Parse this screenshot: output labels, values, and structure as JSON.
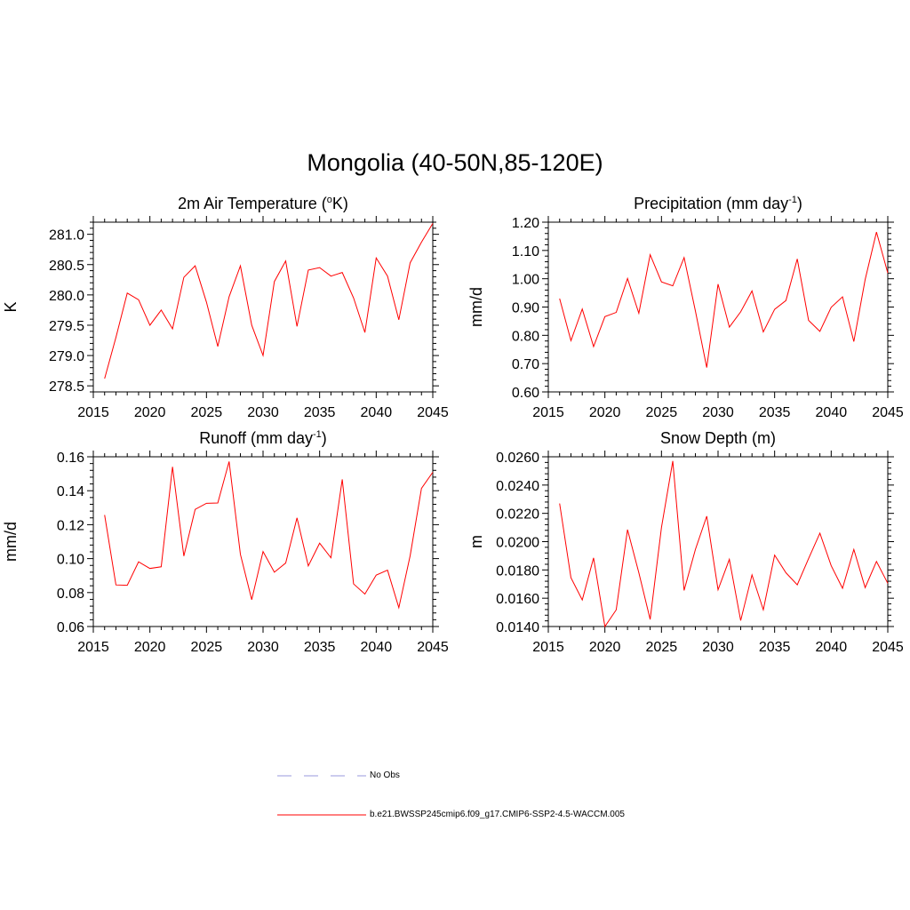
{
  "title": "Mongolia (40-50N,85-120E)",
  "colors": {
    "series": "#ff0000",
    "no_obs": "#9999dd",
    "axis": "#000000"
  },
  "legend": [
    {
      "label": "No Obs",
      "style": "dashed"
    },
    {
      "label": "b.e21.BWSSP245cmip6.f09_g17.CMIP6-SSP2-4.5-WACCM.005",
      "style": "solid"
    }
  ],
  "chart_data": [
    {
      "type": "line",
      "title_main": "2m Air Temperature (",
      "title_sup": "o",
      "title_end": "K)",
      "ylabel": "K",
      "xlim": [
        2015,
        2045
      ],
      "ylim": [
        278.4,
        281.2
      ],
      "xticks": [
        "2015",
        "2020",
        "2025",
        "2030",
        "2035",
        "2040",
        "2045"
      ],
      "yticks": [
        "278.5",
        "279.0",
        "279.5",
        "280.0",
        "280.5",
        "281.0"
      ],
      "x": [
        2016,
        2017,
        2018,
        2019,
        2020,
        2021,
        2022,
        2023,
        2024,
        2025,
        2026,
        2027,
        2028,
        2029,
        2030,
        2031,
        2032,
        2033,
        2034,
        2035,
        2036,
        2037,
        2038,
        2039,
        2040,
        2041,
        2042,
        2043,
        2044,
        2045
      ],
      "values": [
        278.62,
        279.3,
        280.03,
        279.92,
        279.5,
        279.75,
        279.44,
        280.29,
        280.48,
        279.88,
        279.15,
        279.97,
        280.48,
        279.5,
        279.0,
        280.22,
        280.56,
        279.48,
        280.41,
        280.45,
        280.31,
        280.37,
        279.95,
        279.38,
        280.61,
        280.31,
        279.59,
        280.53,
        280.87,
        281.18
      ]
    },
    {
      "type": "line",
      "title_main": "Precipitation (mm day",
      "title_sup": "-1",
      "title_end": ")",
      "ylabel": "mm/d",
      "xlim": [
        2015,
        2045
      ],
      "ylim": [
        0.6,
        1.2
      ],
      "xticks": [
        "2015",
        "2020",
        "2025",
        "2030",
        "2035",
        "2040",
        "2045"
      ],
      "yticks": [
        "0.60",
        "0.70",
        "0.80",
        "0.90",
        "1.00",
        "1.10",
        "1.20"
      ],
      "x": [
        2016,
        2017,
        2018,
        2019,
        2020,
        2021,
        2022,
        2023,
        2024,
        2025,
        2026,
        2027,
        2028,
        2029,
        2030,
        2031,
        2032,
        2033,
        2034,
        2035,
        2036,
        2037,
        2038,
        2039,
        2040,
        2041,
        2042,
        2043,
        2044,
        2045
      ],
      "values": [
        0.93,
        0.781,
        0.893,
        0.76,
        0.866,
        0.881,
        1.001,
        0.878,
        1.085,
        0.989,
        0.975,
        1.075,
        0.886,
        0.686,
        0.981,
        0.829,
        0.883,
        0.957,
        0.812,
        0.892,
        0.923,
        1.07,
        0.853,
        0.814,
        0.899,
        0.936,
        0.778,
        0.997,
        1.165,
        1.02
      ]
    },
    {
      "type": "line",
      "title_main": "Runoff (mm day",
      "title_sup": "-1",
      "title_end": ")",
      "ylabel": "mm/d",
      "xlim": [
        2015,
        2045
      ],
      "ylim": [
        0.06,
        0.16
      ],
      "xticks": [
        "2015",
        "2020",
        "2025",
        "2030",
        "2035",
        "2040",
        "2045"
      ],
      "yticks": [
        "0.06",
        "0.08",
        "0.10",
        "0.12",
        "0.14",
        "0.16"
      ],
      "x": [
        2016,
        2017,
        2018,
        2019,
        2020,
        2021,
        2022,
        2023,
        2024,
        2025,
        2026,
        2027,
        2028,
        2029,
        2030,
        2031,
        2032,
        2033,
        2034,
        2035,
        2036,
        2037,
        2038,
        2039,
        2040,
        2041,
        2042,
        2043,
        2044,
        2045
      ],
      "values": [
        0.1257,
        0.0845,
        0.0843,
        0.0981,
        0.0942,
        0.0952,
        0.1541,
        0.1015,
        0.129,
        0.1326,
        0.1328,
        0.1572,
        0.1025,
        0.0758,
        0.1042,
        0.092,
        0.0974,
        0.124,
        0.0957,
        0.1091,
        0.1005,
        0.1467,
        0.0851,
        0.0791,
        0.0903,
        0.0932,
        0.0711,
        0.1017,
        0.1414,
        0.1509
      ]
    },
    {
      "type": "line",
      "title_main": "Snow Depth (m)",
      "title_sup": "",
      "title_end": "",
      "ylabel": "m",
      "xlim": [
        2015,
        2045
      ],
      "ylim": [
        0.014,
        0.026
      ],
      "xticks": [
        "2015",
        "2020",
        "2025",
        "2030",
        "2035",
        "2040",
        "2045"
      ],
      "yticks": [
        "0.0140",
        "0.0160",
        "0.0180",
        "0.0200",
        "0.0220",
        "0.0240",
        "0.0260"
      ],
      "x": [
        2016,
        2017,
        2018,
        2019,
        2020,
        2021,
        2022,
        2023,
        2024,
        2025,
        2026,
        2027,
        2028,
        2029,
        2030,
        2031,
        2032,
        2033,
        2034,
        2035,
        2036,
        2037,
        2038,
        2039,
        2040,
        2041,
        2042,
        2043,
        2044,
        2045
      ],
      "values": [
        0.0227,
        0.01745,
        0.01588,
        0.01885,
        0.014,
        0.01518,
        0.02085,
        0.0178,
        0.0145,
        0.021,
        0.0257,
        0.01655,
        0.01945,
        0.0218,
        0.0166,
        0.01875,
        0.01442,
        0.01765,
        0.01518,
        0.01905,
        0.0178,
        0.01695,
        0.0188,
        0.0206,
        0.0183,
        0.0167,
        0.01945,
        0.01675,
        0.0186,
        0.01705
      ]
    }
  ]
}
